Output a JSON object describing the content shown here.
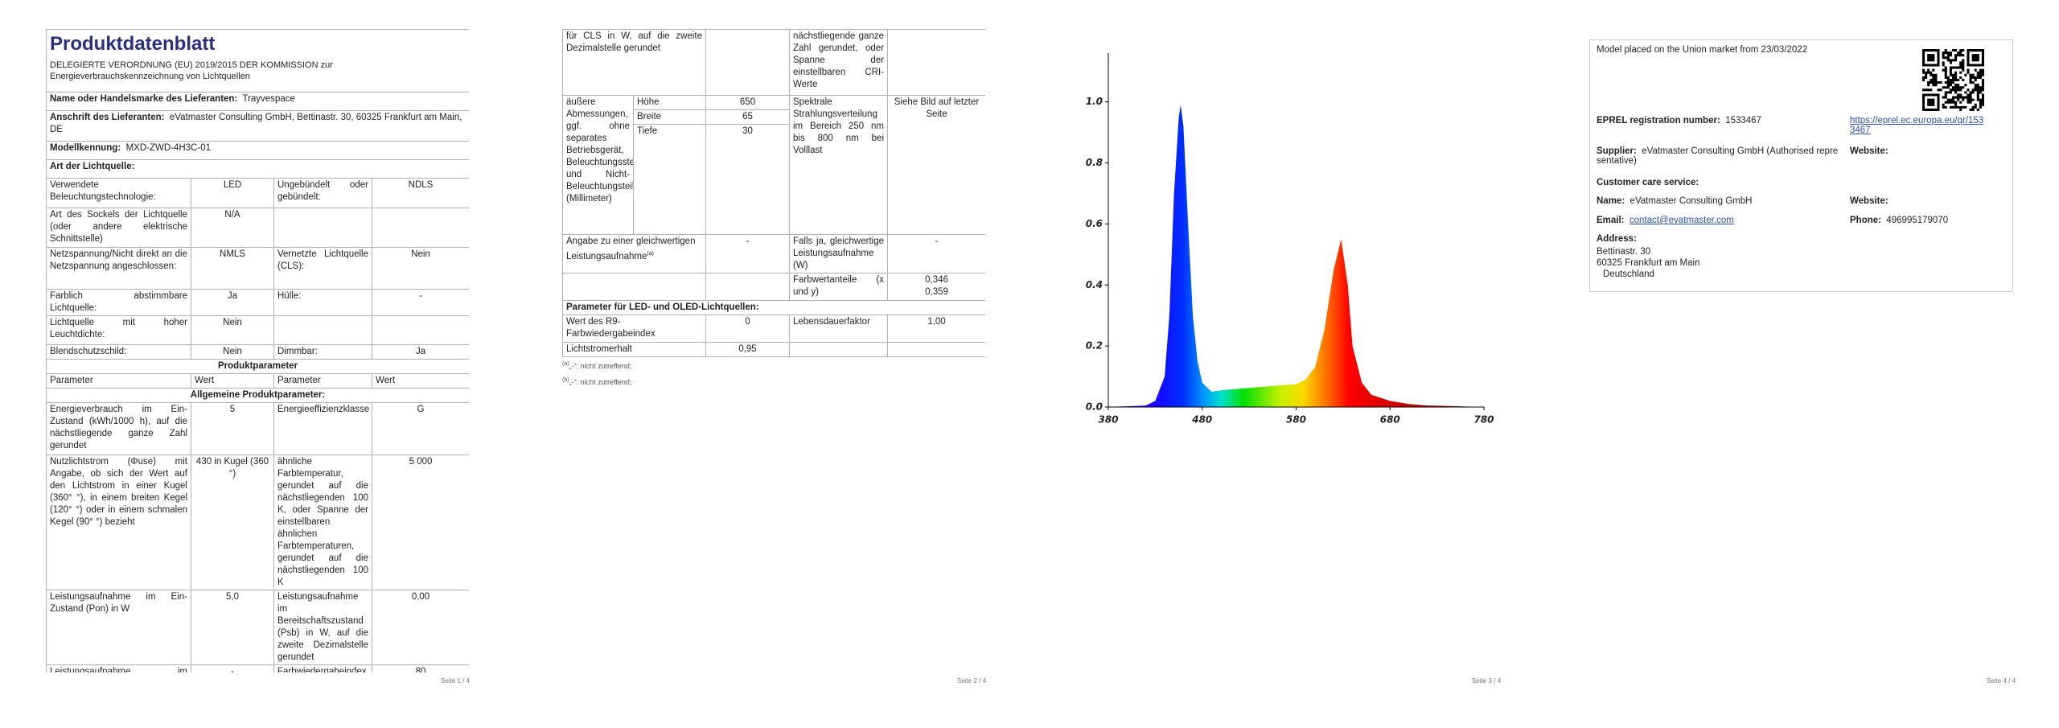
{
  "pages": [
    {
      "title": "Produktdatenblatt",
      "regulation": "DELEGIERTE VERORDNUNG (EU) 2019/2015 DER KOMMISSION zur Energieverbrauchskennzeichnung von Lichtquellen",
      "supplier_name": {
        "label": "Name oder Handelsmarke des Lieferanten:",
        "value": "Trayvespace"
      },
      "supplier_address": {
        "label": "Anschrift des Lieferanten:",
        "value": "eVatmaster Consulting GmbH, Bettinastr. 30, 60325 Frankfurt am Main, DE"
      },
      "model": {
        "label": "Modellkennung:",
        "value": "MXD-ZWD-4H3C-01"
      },
      "light_source_type": "Art der Lichtquelle:",
      "light_rows": [
        [
          "Verwendete Beleuchtungstechnologie:",
          "LED",
          "Ungebündelt oder gebündelt:",
          "NDLS"
        ],
        [
          "Art des Sockels der Lichtquelle (oder andere elektrische Schnittstelle)",
          "N/A"
        ],
        [
          "Netzspannung/Nicht direkt an die Netzspannung angeschlossen:",
          "NMLS",
          "Vernetzte Lichtquelle (CLS):",
          "Nein"
        ],
        [
          "Farblich abstimmbare Lichtquelle:",
          "Ja",
          "Hülle:",
          "-"
        ],
        [
          "Lichtquelle mit hoher Leuchtdichte:",
          "Nein"
        ],
        [
          "Blendschutzschild:",
          "Nein",
          "Dimmbar:",
          "Ja"
        ]
      ],
      "product_parameters": "Produktparameter",
      "header": [
        "Parameter",
        "Wert",
        "Parameter",
        "Wert"
      ],
      "general_parameters": "Allgemeine Produktparameter:",
      "params": [
        [
          "Energieverbrauch im Ein-Zustand (kWh/1000 h), auf die nächstliegende ganze Zahl gerundet",
          "5",
          "Energieeffizienzklasse",
          "G"
        ],
        [
          "Nutzlichtstrom (Φuse) mit Angabe, ob sich der Wert auf den Lichtstrom in einer Kugel (360° °), in einem breiten Kegel (120° °) oder in einem schmalen Kegel (90° °) bezieht",
          "430 in Kugel (360 °)",
          "ähnliche Farbtemperatur, gerundet auf die nächstliegenden 100 K, oder Spanne der einstellbaren ähnlichen Farbtemperaturen, gerundet auf die nächstliegenden 100 K",
          "5 000"
        ],
        [
          "Leistungsaufnahme im Ein-Zustand (Pon) in W",
          "5,0",
          "Leistungsaufnahme im Bereitschaftszustand (Psb) in W, auf die zweite Dezimalstelle gerundet",
          "0,00"
        ],
        [
          "Leistungsaufnahme im vernetzten Bereitschaftsbetrieb (Pnet)",
          "-",
          "Farbwiedergabeindex, auf die",
          "80"
        ]
      ],
      "footer": "Seite 1 / 4"
    },
    {
      "continued": [
        "für CLS in W, auf die zweite Dezimalstelle gerundet",
        "nächstliegende ganze Zahl gerundet, oder Spanne der einstellbaren CRI-Werte"
      ],
      "dimensions": {
        "label": "äußere Abmessungen, ggf. ohne separates Betriebsgerät, Beleuchtungssteuerungsteile und Nicht-Beleuchtungsteile (Millimeter)",
        "items": [
          [
            "Höhe",
            "650"
          ],
          [
            "Breite",
            "65"
          ],
          [
            "Tiefe",
            "30"
          ]
        ]
      },
      "spectral": {
        "label": "Spektrale Strahlungsverteilung im Bereich 250 nm bis 800 nm bei Volllast",
        "value": "Siehe Bild auf letzter Seite"
      },
      "equivalent": {
        "label": "Angabe zu einer gleichwertigen Leistungsaufnahme",
        "note": "(a)",
        "value": "-",
        "label2": "Falls ja, gleichwertige Leistungsaufnahme (W)",
        "value2": "-"
      },
      "chromaticity": {
        "label": "Farbwertanteile (x und y)",
        "values": [
          "0,346",
          "0,359"
        ]
      },
      "led_section": "Parameter für LED- und OLED-Lichtquellen:",
      "led_rows": [
        [
          "Wert des R9-Farbwiedergabeindex",
          "0",
          "Lebensdauerfaktor",
          "1,00"
        ],
        [
          "Lichtstromerhalt",
          "0,95"
        ]
      ],
      "footnotes": [
        {
          "mark": "(a)",
          "text": "„-“: nicht zutreffend;"
        },
        {
          "mark": "(b)",
          "text": "„-“: nicht zutreffend;"
        }
      ],
      "footer": "Seite 2 / 4"
    },
    {
      "footer": "Seite 3 / 4"
    },
    {
      "market": "Model placed on the Union market from 23/03/2022",
      "eprel": {
        "label": "EPREL registration number:",
        "value": "1533467",
        "url": "https://eprel.ec.europa.eu/qr/1533467"
      },
      "supplier": {
        "label": "Supplier:",
        "value": "eVatmaster Consulting GmbH (Authorised representative)",
        "website": "Website:"
      },
      "customer_care": "Customer care service:",
      "name": {
        "label": "Name:",
        "value": "eVatmaster Consulting GmbH",
        "website": "Website:"
      },
      "email": {
        "label": "Email:",
        "value": "contact@evatmaster.com"
      },
      "phone": {
        "label": "Phone:",
        "value": "496995179070"
      },
      "address": {
        "label": "Address:",
        "lines": [
          "Bettinastr. 30",
          "60325 Frankfurt am Main",
          "Deutschland"
        ]
      },
      "footer": "Seite 4 / 4"
    }
  ],
  "chart_data": {
    "type": "area",
    "x": [
      380,
      420,
      430,
      440,
      445,
      450,
      455,
      457,
      460,
      465,
      470,
      475,
      480,
      490,
      500,
      520,
      540,
      560,
      580,
      590,
      600,
      610,
      620,
      628,
      635,
      640,
      650,
      660,
      680,
      700,
      720,
      780
    ],
    "values": [
      0,
      0.005,
      0.02,
      0.1,
      0.3,
      0.7,
      0.95,
      0.99,
      0.92,
      0.6,
      0.3,
      0.15,
      0.08,
      0.05,
      0.055,
      0.06,
      0.065,
      0.07,
      0.075,
      0.09,
      0.13,
      0.25,
      0.45,
      0.55,
      0.4,
      0.2,
      0.08,
      0.04,
      0.02,
      0.01,
      0.005,
      0
    ],
    "xlim": [
      380,
      780
    ],
    "ylim": [
      0,
      1.16
    ],
    "xticks": [
      380,
      480,
      580,
      680,
      780
    ],
    "yticks": [
      {
        "value": 0,
        "label": "0.0"
      },
      0.2,
      0.4,
      0.6,
      0.8,
      {
        "value": 1,
        "label": "1.0"
      }
    ]
  }
}
